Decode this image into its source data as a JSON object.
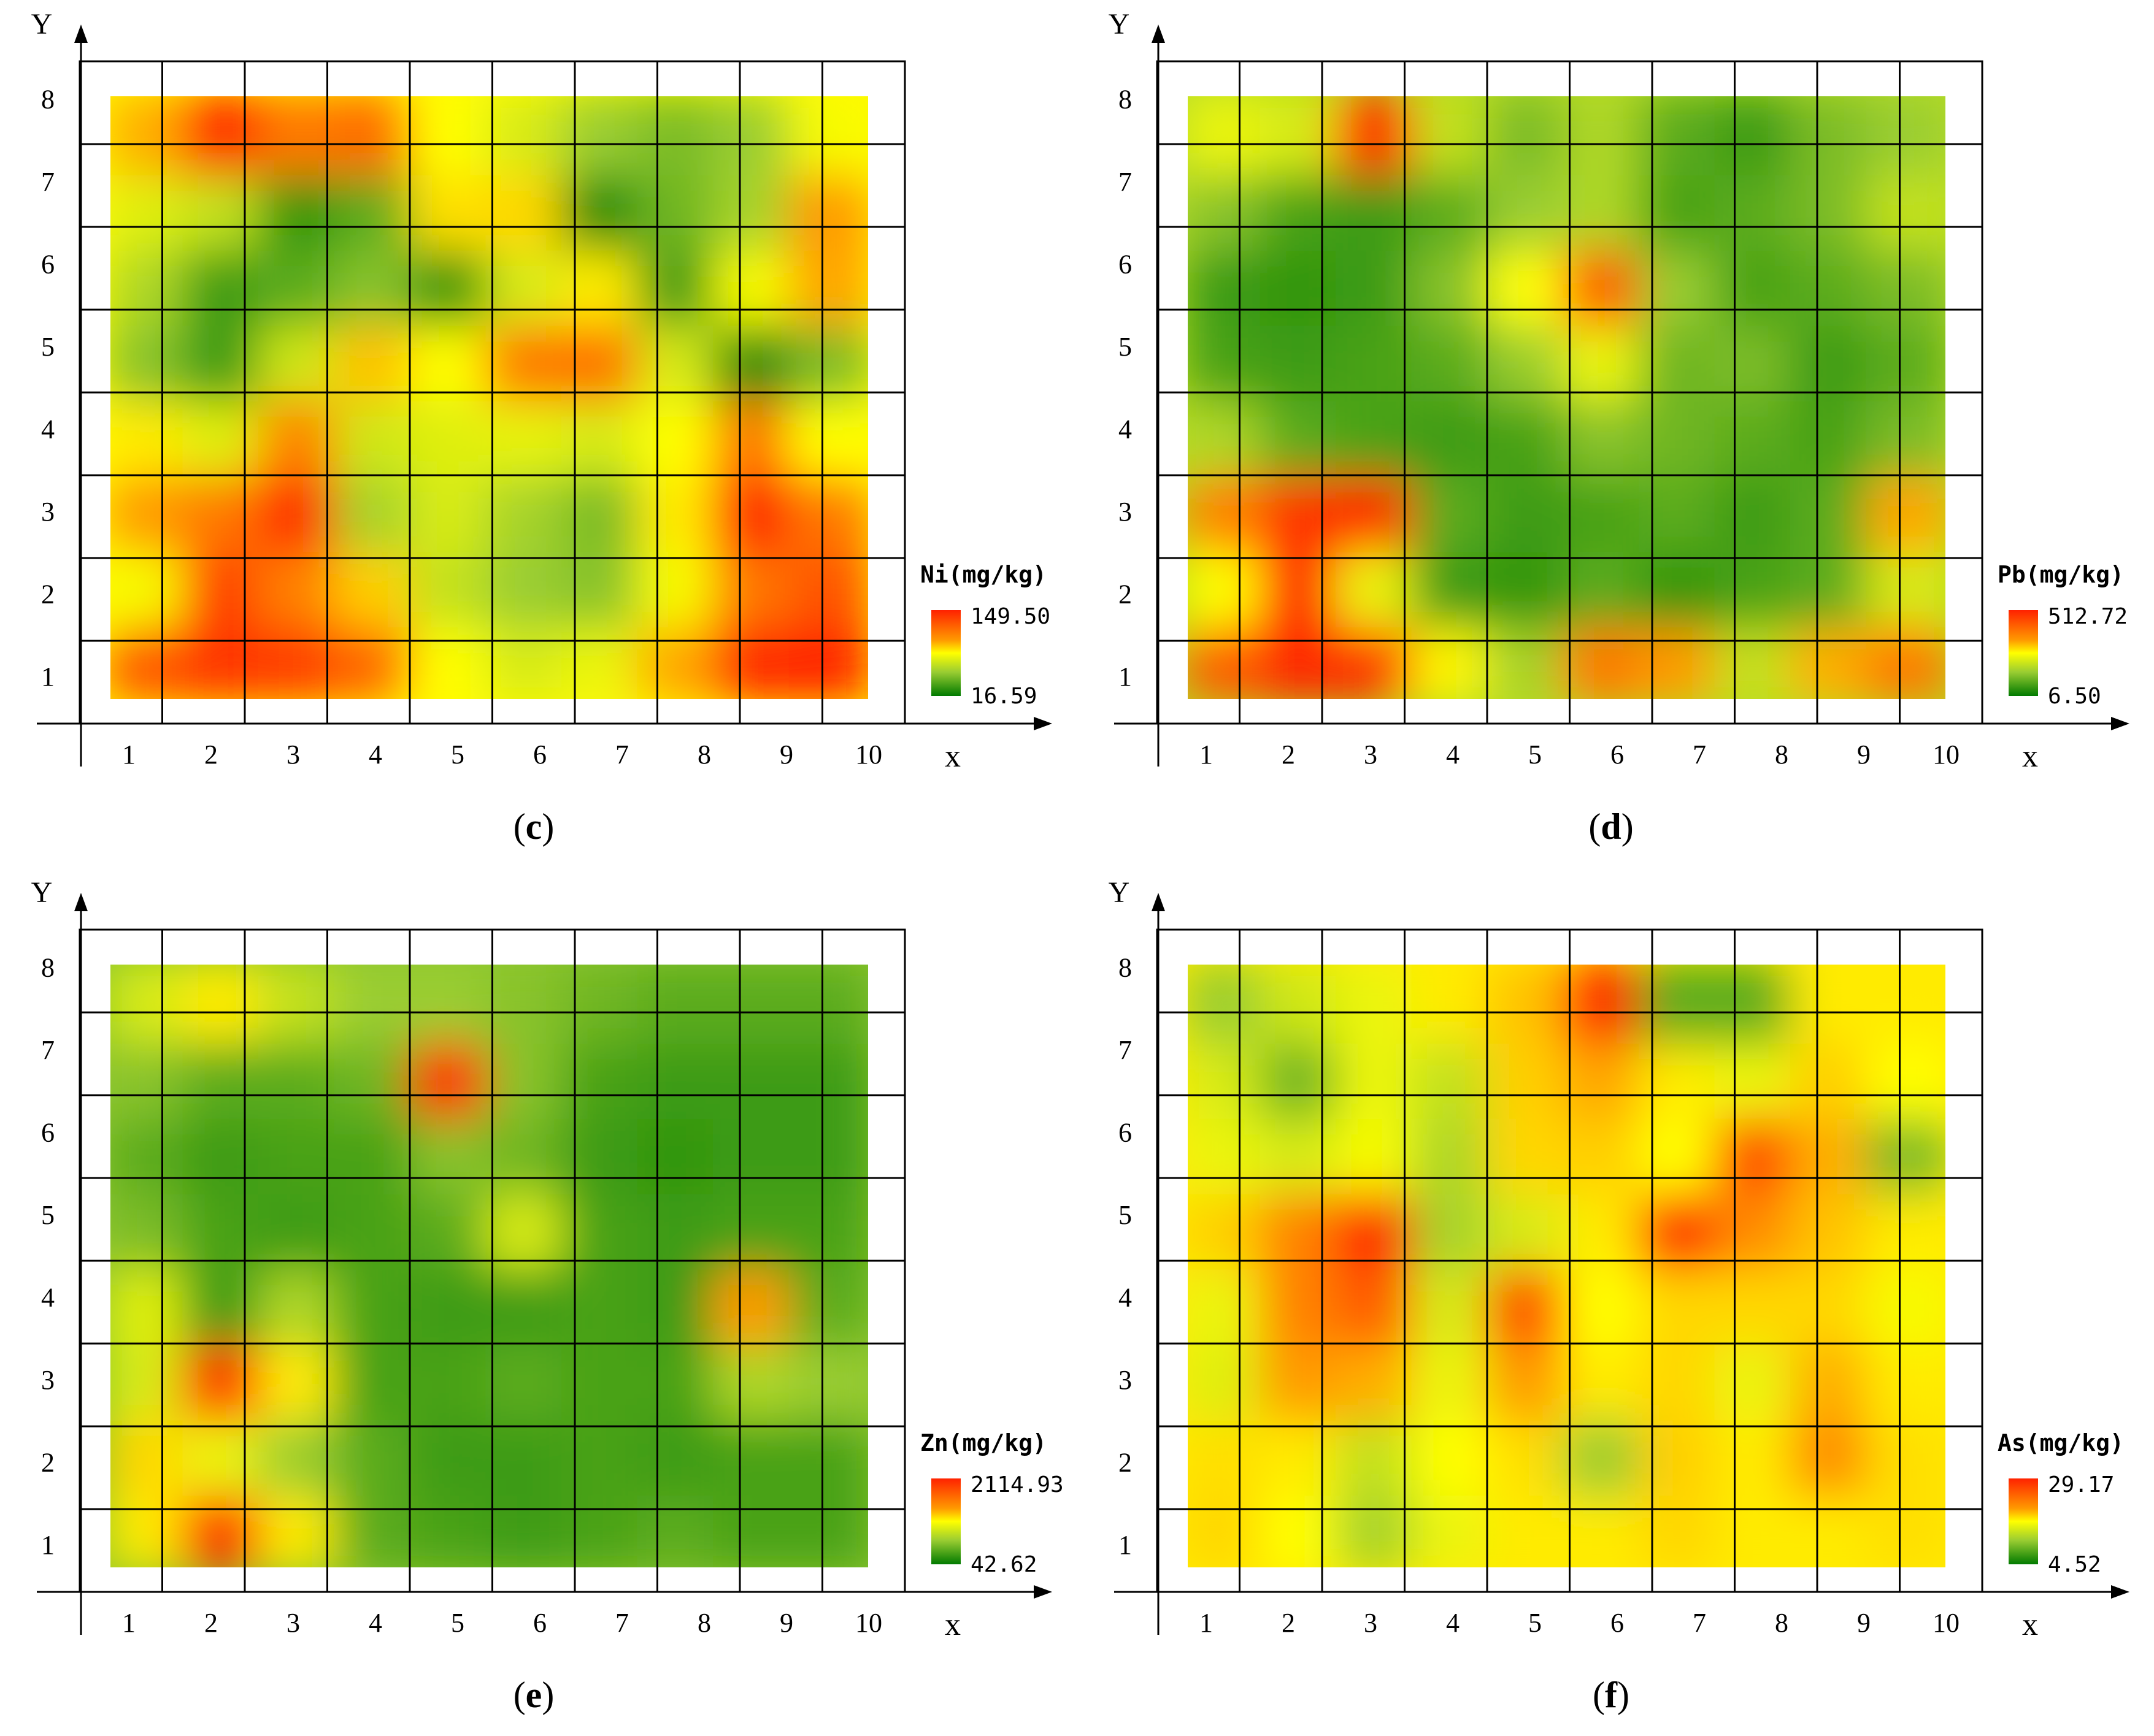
{
  "colors": {
    "high": "#ff2200",
    "mid_high": "#ff9a00",
    "mid": "#ffff00",
    "mid_low": "#9acd32",
    "low": "#007a00",
    "grid": "#000000",
    "axis": "#000000"
  },
  "axis_text": {
    "x_axis_label": "x",
    "y_axis_label": "Y"
  },
  "chart_data": [
    {
      "panel": "c",
      "type": "heatmap",
      "caption_open": "(",
      "caption_letter": "c",
      "caption_close": ")",
      "title": "Ni(mg/kg)",
      "element": "Ni",
      "unit": "(mg/kg)",
      "legend_max": "149.50",
      "legend_min": "16.59",
      "xlabel": "x",
      "ylabel": "Y",
      "x_ticks": [
        "1",
        "2",
        "3",
        "4",
        "5",
        "6",
        "7",
        "8",
        "9",
        "10"
      ],
      "y_ticks": [
        "1",
        "2",
        "3",
        "4",
        "5",
        "6",
        "7",
        "8"
      ],
      "xlim": [
        0.5,
        10.5
      ],
      "ylim": [
        0.5,
        8.5
      ],
      "values": [
        [
          90,
          97,
          95,
          86,
          50,
          40,
          45,
          72,
          99,
          100
        ],
        [
          48,
          94,
          80,
          62,
          35,
          25,
          22,
          48,
          82,
          90
        ],
        [
          75,
          82,
          99,
          28,
          40,
          28,
          20,
          55,
          100,
          82
        ],
        [
          55,
          42,
          80,
          38,
          42,
          44,
          40,
          50,
          82,
          50
        ],
        [
          22,
          10,
          38,
          65,
          50,
          82,
          84,
          40,
          5,
          20
        ],
        [
          30,
          10,
          15,
          22,
          8,
          40,
          55,
          10,
          48,
          72
        ],
        [
          42,
          35,
          8,
          15,
          58,
          60,
          5,
          18,
          28,
          75
        ],
        [
          70,
          100,
          82,
          85,
          50,
          40,
          25,
          20,
          25,
          48
        ]
      ]
    },
    {
      "panel": "d",
      "type": "heatmap",
      "caption_open": "(",
      "caption_letter": "d",
      "caption_close": ")",
      "title": "Pb(mg/kg)",
      "element": "Pb",
      "unit": "(mg/kg)",
      "legend_max": "512.72",
      "legend_min": "6.50",
      "xlabel": "x",
      "ylabel": "Y",
      "x_ticks": [
        "1",
        "2",
        "3",
        "4",
        "5",
        "6",
        "7",
        "8",
        "9",
        "10"
      ],
      "y_ticks": [
        "1",
        "2",
        "3",
        "4",
        "5",
        "6",
        "7",
        "8"
      ],
      "xlim": [
        0.5,
        10.5
      ],
      "ylim": [
        0.5,
        8.5
      ],
      "values": [
        [
          88,
          100,
          97,
          52,
          28,
          82,
          75,
          35,
          70,
          82
        ],
        [
          50,
          100,
          45,
          10,
          8,
          15,
          8,
          12,
          15,
          40
        ],
        [
          80,
          97,
          100,
          15,
          10,
          12,
          15,
          10,
          15,
          72
        ],
        [
          30,
          15,
          12,
          10,
          12,
          22,
          18,
          15,
          12,
          20
        ],
        [
          12,
          10,
          12,
          15,
          25,
          45,
          18,
          20,
          10,
          15
        ],
        [
          10,
          8,
          10,
          22,
          50,
          88,
          25,
          12,
          15,
          20
        ],
        [
          22,
          12,
          10,
          15,
          25,
          30,
          12,
          15,
          20,
          35
        ],
        [
          45,
          40,
          100,
          35,
          20,
          30,
          15,
          10,
          20,
          25
        ]
      ]
    },
    {
      "panel": "e",
      "type": "heatmap",
      "caption_open": "(",
      "caption_letter": "e",
      "caption_close": ")",
      "title": "Zn(mg/kg)",
      "element": "Zn",
      "unit": "(mg/kg)",
      "legend_max": "2114.93",
      "legend_min": "42.62",
      "xlabel": "x",
      "ylabel": "Y",
      "x_ticks": [
        "1",
        "2",
        "3",
        "4",
        "5",
        "6",
        "7",
        "8",
        "9",
        "10"
      ],
      "y_ticks": [
        "1",
        "2",
        "3",
        "4",
        "5",
        "6",
        "7",
        "8"
      ],
      "xlim": [
        0.5,
        10.5
      ],
      "ylim": [
        0.5,
        8.5
      ],
      "values": [
        [
          55,
          100,
          55,
          15,
          12,
          10,
          12,
          15,
          12,
          12
        ],
        [
          60,
          45,
          25,
          15,
          10,
          10,
          12,
          10,
          12,
          12
        ],
        [
          40,
          100,
          55,
          12,
          12,
          15,
          12,
          12,
          30,
          25
        ],
        [
          42,
          10,
          30,
          12,
          10,
          10,
          12,
          10,
          75,
          15
        ],
        [
          20,
          12,
          10,
          12,
          15,
          40,
          12,
          10,
          12,
          12
        ],
        [
          15,
          10,
          12,
          12,
          22,
          18,
          10,
          8,
          10,
          10
        ],
        [
          22,
          15,
          15,
          18,
          100,
          22,
          12,
          10,
          10,
          10
        ],
        [
          40,
          55,
          35,
          25,
          25,
          22,
          18,
          15,
          15,
          15
        ]
      ]
    },
    {
      "panel": "f",
      "type": "heatmap",
      "caption_open": "(",
      "caption_letter": "f",
      "caption_close": ")",
      "title": "As(mg/kg)",
      "element": "As",
      "unit": "(mg/kg)",
      "legend_max": "29.17",
      "legend_min": "4.52",
      "xlabel": "x",
      "ylabel": "Y",
      "x_ticks": [
        "1",
        "2",
        "3",
        "4",
        "5",
        "6",
        "7",
        "8",
        "9",
        "10"
      ],
      "y_ticks": [
        "1",
        "2",
        "3",
        "4",
        "5",
        "6",
        "7",
        "8"
      ],
      "xlim": [
        0.5,
        10.5
      ],
      "ylim": [
        0.5,
        8.5
      ],
      "values": [
        [
          60,
          50,
          28,
          45,
          55,
          55,
          60,
          55,
          55,
          58
        ],
        [
          58,
          55,
          35,
          50,
          58,
          25,
          62,
          55,
          78,
          58
        ],
        [
          42,
          75,
          70,
          45,
          75,
          55,
          60,
          45,
          70,
          55
        ],
        [
          45,
          80,
          88,
          40,
          92,
          50,
          60,
          60,
          60,
          48
        ],
        [
          62,
          80,
          100,
          28,
          40,
          55,
          100,
          78,
          65,
          55
        ],
        [
          45,
          40,
          48,
          30,
          60,
          62,
          50,
          92,
          70,
          20
        ],
        [
          40,
          18,
          45,
          35,
          62,
          72,
          55,
          45,
          62,
          50
        ],
        [
          25,
          38,
          45,
          55,
          65,
          100,
          15,
          15,
          55,
          55
        ]
      ]
    }
  ]
}
